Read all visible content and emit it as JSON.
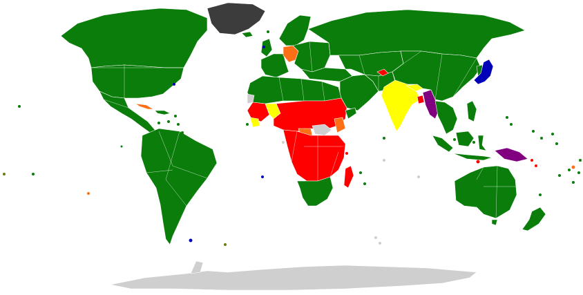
{
  "palette": {
    "green": "#0a7d0a",
    "red": "#ff0000",
    "yellow": "#ffff00",
    "orange": "#ff6f16",
    "purple": "#800080",
    "blue": "#0000b8",
    "dark_gray": "#3c3c3c",
    "light_gray": "#cfcfcf",
    "olive": "#6b7a10",
    "background": "#ffffff"
  },
  "map": {
    "kind": "world-choropleth",
    "projection": "equirectangular-like",
    "legend_visible": false,
    "title_visible": false,
    "category_colors_present": [
      "green",
      "red",
      "yellow",
      "orange",
      "purple",
      "blue",
      "dark_gray",
      "light_gray",
      "olive"
    ]
  }
}
